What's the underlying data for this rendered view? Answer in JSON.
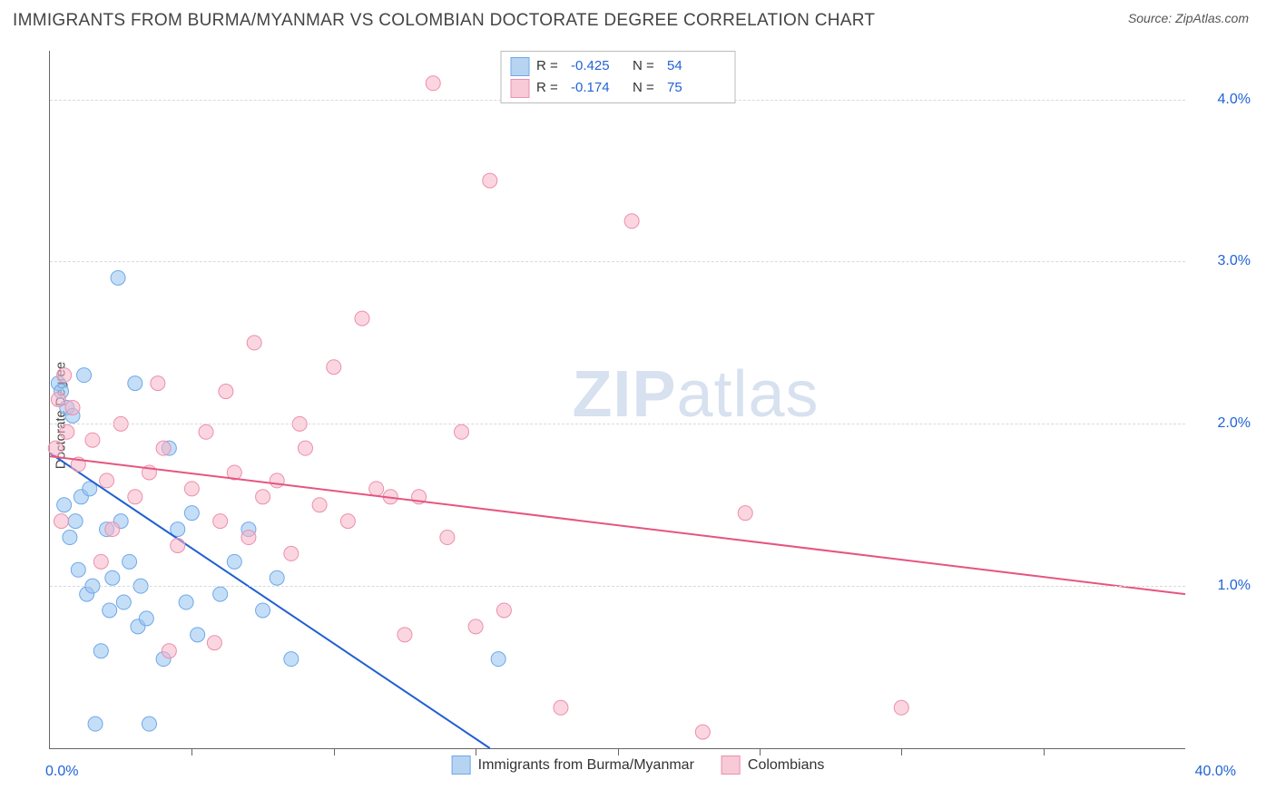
{
  "header": {
    "title": "IMMIGRANTS FROM BURMA/MYANMAR VS COLOMBIAN DOCTORATE DEGREE CORRELATION CHART",
    "source_prefix": "Source: ",
    "source": "ZipAtlas.com"
  },
  "watermark": {
    "zip": "ZIP",
    "atlas": "atlas"
  },
  "ylabel": "Doctorate Degree",
  "legend_top": {
    "rows": [
      {
        "swatch_fill": "#b7d3f2",
        "swatch_border": "#6fa8e8",
        "r_label": "R =",
        "r_value": "-0.425",
        "n_label": "N =",
        "n_value": "54"
      },
      {
        "swatch_fill": "#f8c9d7",
        "swatch_border": "#ec8fab",
        "r_label": "R =",
        "r_value": "-0.174",
        "n_label": "N =",
        "n_value": "75"
      }
    ]
  },
  "legend_bottom": {
    "items": [
      {
        "swatch_fill": "#b7d3f2",
        "swatch_border": "#6fa8e8",
        "label": "Immigrants from Burma/Myanmar"
      },
      {
        "swatch_fill": "#f8c9d7",
        "swatch_border": "#ec8fab",
        "label": "Colombians"
      }
    ]
  },
  "chart": {
    "type": "scatter",
    "xlim": [
      0,
      40
    ],
    "ylim": [
      0,
      4.3
    ],
    "x_tick_step": 5,
    "y_ticks": [
      1.0,
      2.0,
      3.0,
      4.0
    ],
    "y_tick_labels": [
      "1.0%",
      "2.0%",
      "3.0%",
      "4.0%"
    ],
    "x_min_label": "0.0%",
    "x_max_label": "40.0%",
    "grid_color": "#d9d9d9",
    "background_color": "#ffffff",
    "marker_radius": 8,
    "series": [
      {
        "name": "burma",
        "fill": "rgba(150,195,240,0.55)",
        "stroke": "#6fa8e8",
        "points": [
          [
            0.3,
            2.25
          ],
          [
            0.4,
            2.2
          ],
          [
            0.5,
            1.5
          ],
          [
            0.6,
            2.1
          ],
          [
            0.7,
            1.3
          ],
          [
            0.8,
            2.05
          ],
          [
            0.9,
            1.4
          ],
          [
            1.0,
            1.1
          ],
          [
            1.1,
            1.55
          ],
          [
            1.2,
            2.3
          ],
          [
            1.3,
            0.95
          ],
          [
            1.4,
            1.6
          ],
          [
            1.5,
            1.0
          ],
          [
            1.6,
            0.15
          ],
          [
            1.8,
            0.6
          ],
          [
            2.0,
            1.35
          ],
          [
            2.1,
            0.85
          ],
          [
            2.2,
            1.05
          ],
          [
            2.4,
            2.9
          ],
          [
            2.5,
            1.4
          ],
          [
            2.6,
            0.9
          ],
          [
            2.8,
            1.15
          ],
          [
            3.0,
            2.25
          ],
          [
            3.1,
            0.75
          ],
          [
            3.2,
            1.0
          ],
          [
            3.4,
            0.8
          ],
          [
            3.5,
            0.15
          ],
          [
            4.0,
            0.55
          ],
          [
            4.2,
            1.85
          ],
          [
            4.5,
            1.35
          ],
          [
            4.8,
            0.9
          ],
          [
            5.0,
            1.45
          ],
          [
            5.2,
            0.7
          ],
          [
            6.0,
            0.95
          ],
          [
            6.5,
            1.15
          ],
          [
            7.0,
            1.35
          ],
          [
            7.5,
            0.85
          ],
          [
            8.0,
            1.05
          ],
          [
            8.5,
            0.55
          ],
          [
            15.8,
            0.55
          ]
        ],
        "trend": {
          "x1": 0,
          "y1": 1.82,
          "x2": 15.5,
          "y2": 0,
          "color": "#1e5fd1",
          "width": 2
        }
      },
      {
        "name": "colombians",
        "fill": "rgba(248,180,200,0.55)",
        "stroke": "#ec8fab",
        "points": [
          [
            0.2,
            1.85
          ],
          [
            0.3,
            2.15
          ],
          [
            0.5,
            2.3
          ],
          [
            0.6,
            1.95
          ],
          [
            0.8,
            2.1
          ],
          [
            1.0,
            1.75
          ],
          [
            1.5,
            1.9
          ],
          [
            2.0,
            1.65
          ],
          [
            2.5,
            2.0
          ],
          [
            3.0,
            1.55
          ],
          [
            3.5,
            1.7
          ],
          [
            4.0,
            1.85
          ],
          [
            4.5,
            1.25
          ],
          [
            5.0,
            1.6
          ],
          [
            5.5,
            1.95
          ],
          [
            6.0,
            1.4
          ],
          [
            6.2,
            2.2
          ],
          [
            6.5,
            1.7
          ],
          [
            7.0,
            1.3
          ],
          [
            7.5,
            1.55
          ],
          [
            8.0,
            1.65
          ],
          [
            8.5,
            1.2
          ],
          [
            9.0,
            1.85
          ],
          [
            9.5,
            1.5
          ],
          [
            10.0,
            2.35
          ],
          [
            10.5,
            1.4
          ],
          [
            11.0,
            2.65
          ],
          [
            11.5,
            1.6
          ],
          [
            12.0,
            1.55
          ],
          [
            12.5,
            0.7
          ],
          [
            13.0,
            1.55
          ],
          [
            13.5,
            4.1
          ],
          [
            14.0,
            1.3
          ],
          [
            14.5,
            1.95
          ],
          [
            15.0,
            0.75
          ],
          [
            15.5,
            3.5
          ],
          [
            16.0,
            0.85
          ],
          [
            18.0,
            0.25
          ],
          [
            20.5,
            3.25
          ],
          [
            24.5,
            1.45
          ],
          [
            23.0,
            0.1
          ],
          [
            30.0,
            0.25
          ],
          [
            4.2,
            0.6
          ],
          [
            5.8,
            0.65
          ],
          [
            7.2,
            2.5
          ],
          [
            8.8,
            2.0
          ],
          [
            3.8,
            2.25
          ],
          [
            2.2,
            1.35
          ],
          [
            1.8,
            1.15
          ],
          [
            0.4,
            1.4
          ]
        ],
        "trend": {
          "x1": 0,
          "y1": 1.8,
          "x2": 40,
          "y2": 0.95,
          "color": "#e6557f",
          "width": 2
        }
      }
    ]
  }
}
